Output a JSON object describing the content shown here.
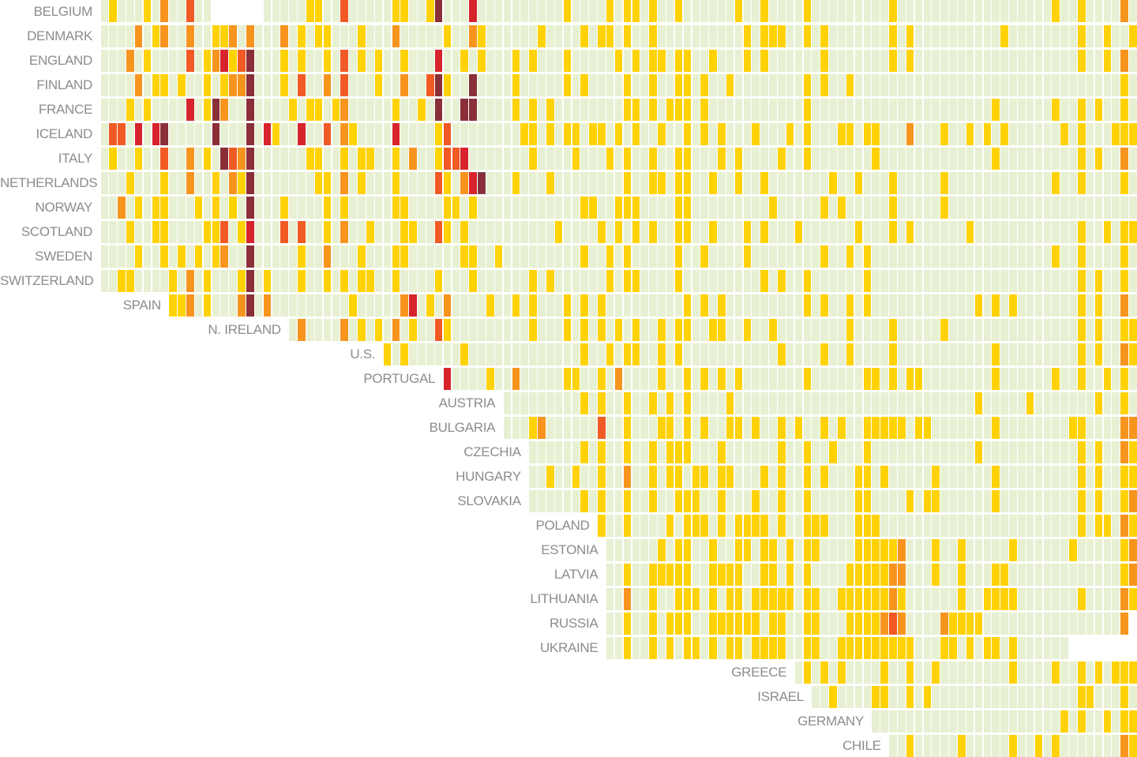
{
  "chart_data": {
    "type": "heatmap",
    "title": "",
    "columns": 121,
    "level_colors": {
      "0": "#e7f0d2",
      "1": "#ffd205",
      "2": "#f7941e",
      "3": "#f15a24",
      "4": "#d7232b",
      "5": "#8a2e38"
    },
    "rows": [
      {
        "country": "BELGIUM",
        "start": 0,
        "end": 120,
        "gaps": [
          [
            13,
            18
          ]
        ],
        "cells": {
          "1": [
            1,
            5,
            24,
            25,
            34,
            35,
            38,
            54,
            59,
            61,
            62,
            64,
            67,
            74,
            77,
            82,
            92,
            111,
            114
          ],
          "2": [
            7,
            119
          ],
          "3": [
            10,
            28
          ],
          "4": [
            43
          ],
          "5": [
            39
          ]
        }
      },
      {
        "country": "DENMARK",
        "start": 0,
        "end": 120,
        "cells": {
          "1": [
            6,
            13,
            14,
            23,
            25,
            26,
            30,
            40,
            44,
            51,
            56,
            58,
            59,
            61,
            64,
            75,
            77,
            78,
            79,
            82,
            84,
            92,
            94,
            105,
            114,
            117,
            120
          ],
          "2": [
            4,
            7,
            10,
            15,
            17,
            21,
            34,
            43
          ]
        }
      },
      {
        "country": "ENGLAND",
        "start": 0,
        "end": 120,
        "cells": {
          "1": [
            5,
            12,
            15,
            21,
            23,
            26,
            30,
            32,
            35,
            42,
            44,
            48,
            50,
            54,
            60,
            62,
            64,
            65,
            67,
            68,
            71,
            75,
            77,
            84,
            92,
            94,
            114,
            117
          ],
          "2": [
            3,
            13,
            119
          ],
          "3": [
            10,
            16,
            28
          ],
          "4": [
            14,
            39
          ],
          "5": [
            17
          ]
        }
      },
      {
        "country": "FINLAND",
        "start": 0,
        "end": 120,
        "cells": {
          "1": [
            6,
            7,
            9,
            12,
            14,
            21,
            32,
            40,
            48,
            54,
            56,
            61,
            64,
            67,
            68,
            70,
            73,
            82,
            84,
            87,
            119
          ],
          "2": [
            4,
            15,
            16,
            26,
            35
          ],
          "3": [
            23,
            28,
            38
          ],
          "5": [
            17,
            39,
            43
          ]
        }
      },
      {
        "country": "FRANCE",
        "start": 0,
        "end": 120,
        "cells": {
          "1": [
            3,
            5,
            12,
            22,
            24,
            25,
            27,
            34,
            37,
            48,
            50,
            52,
            61,
            62,
            64,
            66,
            67,
            68,
            70,
            82,
            104,
            111,
            114,
            116,
            119
          ],
          "2": [
            14,
            28
          ],
          "4": [
            10
          ],
          "5": [
            13,
            17,
            39,
            42,
            43
          ]
        }
      },
      {
        "country": "ICELAND",
        "start": 0,
        "end": 120,
        "cells": {
          "1": [
            20,
            29,
            39,
            49,
            50,
            52,
            54,
            55,
            57,
            58,
            60,
            62,
            65,
            68,
            70,
            72,
            76,
            80,
            82,
            86,
            87,
            89,
            90,
            98,
            101,
            103,
            105,
            112,
            114,
            118,
            119,
            120
          ],
          "2": [
            28,
            94
          ],
          "3": [
            1,
            2,
            26,
            40
          ],
          "4": [
            4,
            6,
            19,
            23,
            34
          ],
          "5": [
            7,
            13,
            17
          ]
        }
      },
      {
        "country": "ITALY",
        "start": 0,
        "end": 120,
        "cells": {
          "1": [
            1,
            4,
            12,
            24,
            25,
            28,
            30,
            31,
            34,
            39,
            50,
            55,
            59,
            61,
            64,
            67,
            68,
            72,
            74,
            79,
            82,
            90,
            104,
            114,
            116
          ],
          "2": [
            10,
            16,
            36,
            119
          ],
          "3": [
            7,
            15,
            40,
            41
          ],
          "4": [
            42
          ],
          "5": [
            14,
            17
          ]
        }
      },
      {
        "country": "NETHERLANDS",
        "start": 0,
        "end": 120,
        "highlight": 44,
        "cells": {
          "1": [
            3,
            7,
            13,
            16,
            25,
            26,
            30,
            34,
            40,
            48,
            52,
            61,
            64,
            65,
            67,
            68,
            71,
            74,
            77,
            85,
            88,
            92,
            98,
            111,
            114,
            119
          ],
          "2": [
            10,
            15,
            28,
            42
          ],
          "3": [
            39
          ],
          "4": [
            43
          ],
          "5": [
            17,
            44
          ]
        }
      },
      {
        "country": "NORWAY",
        "start": 0,
        "end": 120,
        "cells": {
          "1": [
            4,
            6,
            7,
            11,
            13,
            15,
            21,
            26,
            28,
            34,
            35,
            40,
            41,
            43,
            56,
            57,
            60,
            61,
            62,
            67,
            68,
            78,
            84,
            86,
            92,
            98
          ],
          "2": [
            2
          ],
          "5": [
            17
          ]
        }
      },
      {
        "country": "SCOTLAND",
        "start": 0,
        "end": 120,
        "cells": {
          "1": [
            3,
            6,
            7,
            12,
            13,
            16,
            26,
            31,
            35,
            36,
            40,
            42,
            53,
            58,
            60,
            62,
            64,
            67,
            68,
            71,
            75,
            77,
            81,
            88,
            92,
            94,
            101,
            114,
            117,
            119,
            120
          ],
          "2": [
            28
          ],
          "3": [
            14,
            21,
            23,
            39
          ],
          "4": [
            17
          ]
        }
      },
      {
        "country": "SWEDEN",
        "start": 0,
        "end": 120,
        "cells": {
          "1": [
            4,
            7,
            9,
            11,
            13,
            23,
            30,
            34,
            35,
            42,
            43,
            46,
            56,
            59,
            61,
            67,
            70,
            75,
            84,
            87,
            89,
            111,
            114,
            119
          ],
          "2": [
            14,
            26
          ],
          "5": [
            17
          ]
        }
      },
      {
        "country": "SWITZERLAND",
        "start": 0,
        "end": 120,
        "cells": {
          "1": [
            2,
            3,
            8,
            12,
            16,
            19,
            23,
            26,
            28,
            30,
            31,
            34,
            39,
            43,
            50,
            52,
            59,
            61,
            62,
            67,
            77,
            79,
            82,
            89,
            114,
            116,
            119
          ],
          "2": [
            10
          ],
          "5": [
            17
          ]
        }
      },
      {
        "country": "SPAIN",
        "start": 8,
        "end": 120,
        "cells": {
          "1": [
            8,
            9,
            12,
            29,
            38,
            45,
            48,
            50,
            54,
            56,
            58,
            68,
            70,
            72,
            82,
            84,
            87,
            89,
            102,
            104,
            106,
            114,
            116
          ],
          "2": [
            10,
            16,
            19,
            35,
            40,
            119
          ],
          "4": [
            36
          ],
          "5": [
            17
          ]
        }
      },
      {
        "country": "N. IRELAND",
        "start": 22,
        "end": 120,
        "cells": {
          "1": [
            30,
            32,
            36,
            40,
            50,
            54,
            56,
            58,
            60,
            62,
            65,
            67,
            68,
            71,
            72,
            75,
            78,
            87,
            92,
            98,
            114,
            116,
            119,
            120
          ],
          "2": [
            23,
            28,
            34
          ],
          "3": [
            39
          ]
        }
      },
      {
        "country": "U.S.",
        "start": 33,
        "end": 120,
        "cells": {
          "1": [
            33,
            35,
            42,
            56,
            59,
            61,
            62,
            65,
            67,
            79,
            84,
            87,
            92,
            104,
            114,
            116,
            120
          ],
          "2": [
            119
          ]
        }
      },
      {
        "country": "PORTUGAL",
        "start": 40,
        "end": 120,
        "cells": {
          "1": [
            45,
            54,
            55,
            58,
            65,
            68,
            70,
            72,
            74,
            82,
            89,
            90,
            92,
            94,
            95,
            104,
            111,
            114,
            117,
            119
          ],
          "2": [
            48,
            60
          ],
          "4": [
            40
          ]
        }
      },
      {
        "country": "AUSTRIA",
        "start": 47,
        "end": 120,
        "cells": {
          "1": [
            56,
            58,
            61,
            64,
            66,
            68,
            73,
            102,
            108,
            116,
            119
          ]
        }
      },
      {
        "country": "BULGARIA",
        "start": 47,
        "end": 120,
        "cells": {
          "1": [
            50,
            61,
            65,
            66,
            68,
            70,
            73,
            74,
            76,
            79,
            81,
            84,
            86,
            89,
            90,
            91,
            92,
            93,
            95,
            96,
            104,
            113,
            114
          ],
          "2": [
            51,
            119,
            120
          ],
          "3": [
            58
          ]
        }
      },
      {
        "country": "CZECHIA",
        "start": 50,
        "end": 120,
        "cells": {
          "1": [
            56,
            58,
            61,
            64,
            66,
            67,
            68,
            72,
            79,
            82,
            85,
            89,
            102,
            114,
            116,
            120
          ],
          "2": [
            119
          ]
        }
      },
      {
        "country": "HUNGARY",
        "start": 50,
        "end": 120,
        "cells": {
          "1": [
            52,
            55,
            58,
            64,
            66,
            67,
            69,
            70,
            72,
            73,
            77,
            79,
            82,
            84,
            88,
            89,
            91,
            97,
            104,
            114,
            116,
            119,
            120
          ],
          "2": [
            61
          ]
        }
      },
      {
        "country": "SLOVAKIA",
        "start": 50,
        "end": 120,
        "cells": {
          "1": [
            56,
            58,
            61,
            64,
            67,
            68,
            69,
            72,
            76,
            79,
            82,
            88,
            89,
            94,
            96,
            97,
            104,
            114,
            116,
            119
          ],
          "2": [
            120
          ]
        }
      },
      {
        "country": "POLAND",
        "start": 58,
        "end": 120,
        "cells": {
          "1": [
            58,
            61,
            66,
            68,
            69,
            70,
            72,
            74,
            75,
            76,
            77,
            79,
            82,
            83,
            84,
            88,
            89,
            90,
            114,
            116,
            117,
            120
          ],
          "2": [
            119
          ]
        }
      },
      {
        "country": "ESTONIA",
        "start": 59,
        "end": 120,
        "cells": {
          "1": [
            65,
            67,
            68,
            71,
            74,
            75,
            77,
            78,
            80,
            82,
            83,
            88,
            89,
            90,
            91,
            92,
            97,
            100,
            106,
            113,
            119
          ],
          "2": [
            93,
            120
          ]
        }
      },
      {
        "country": "LATVIA",
        "start": 59,
        "end": 120,
        "cells": {
          "1": [
            61,
            64,
            65,
            66,
            67,
            68,
            71,
            72,
            73,
            74,
            77,
            78,
            80,
            82,
            87,
            88,
            89,
            90,
            91,
            97,
            100,
            104,
            105,
            119
          ],
          "2": [
            92,
            93,
            120
          ]
        }
      },
      {
        "country": "LITHUANIA",
        "start": 59,
        "end": 120,
        "cells": {
          "1": [
            64,
            67,
            68,
            69,
            71,
            73,
            74,
            76,
            77,
            78,
            79,
            80,
            82,
            83,
            86,
            87,
            88,
            89,
            90,
            91,
            93,
            100,
            103,
            104,
            105,
            106,
            114,
            120
          ],
          "2": [
            61,
            92,
            119
          ]
        }
      },
      {
        "country": "RUSSIA",
        "start": 59,
        "end": 119,
        "cells": {
          "1": [
            61,
            64,
            66,
            67,
            68,
            71,
            72,
            73,
            74,
            75,
            76,
            78,
            79,
            82,
            83,
            87,
            88,
            89,
            90,
            99,
            100,
            101,
            102
          ],
          "2": [
            91,
            93,
            98,
            119
          ],
          "3": [
            92
          ]
        }
      },
      {
        "country": "UKRAINE",
        "start": 59,
        "end": 112,
        "cells": {
          "1": [
            61,
            64,
            66,
            68,
            69,
            71,
            73,
            74,
            76,
            77,
            78,
            79,
            82,
            83,
            86,
            87,
            88,
            89,
            90,
            91,
            92,
            93,
            94,
            98,
            99,
            101,
            103,
            104,
            106
          ]
        }
      },
      {
        "country": "GREECE",
        "start": 81,
        "end": 120,
        "cells": {
          "1": [
            82,
            84,
            86,
            91,
            94,
            97,
            106,
            111,
            114,
            116,
            118,
            119,
            120
          ]
        }
      },
      {
        "country": "ISRAEL",
        "start": 83,
        "end": 120,
        "cells": {
          "1": [
            85,
            90,
            91,
            94,
            96,
            114,
            115,
            119
          ]
        }
      },
      {
        "country": "GERMANY",
        "start": 90,
        "end": 120,
        "cells": {
          "1": [
            112,
            114,
            117,
            119,
            120
          ]
        }
      },
      {
        "country": "CHILE",
        "start": 92,
        "end": 120,
        "cells": {
          "1": [
            94,
            100,
            106,
            109,
            111,
            120
          ],
          "2": [
            119
          ]
        }
      }
    ]
  }
}
